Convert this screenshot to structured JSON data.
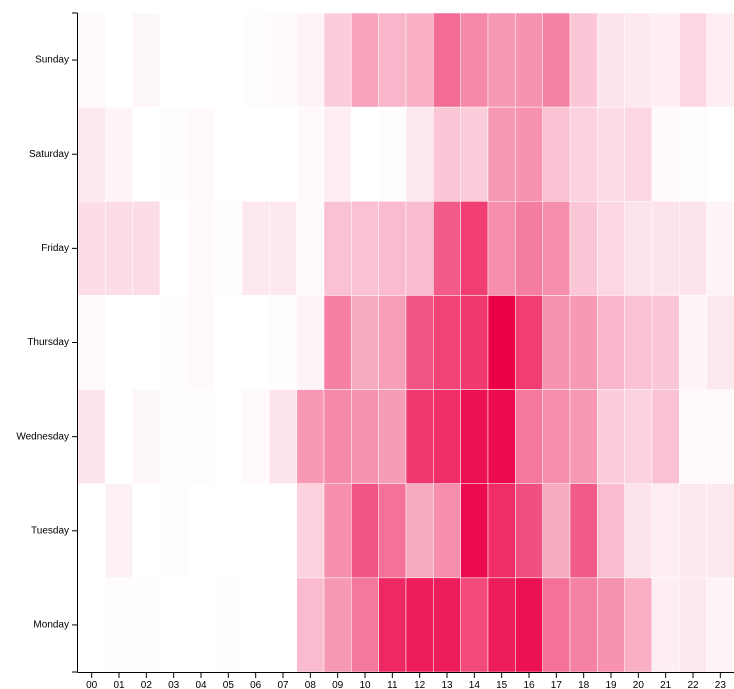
{
  "chart_data": {
    "type": "heatmap",
    "x_categories": [
      "00",
      "01",
      "02",
      "03",
      "04",
      "05",
      "06",
      "07",
      "08",
      "09",
      "10",
      "11",
      "12",
      "13",
      "14",
      "15",
      "16",
      "17",
      "18",
      "19",
      "20",
      "21",
      "22",
      "23"
    ],
    "y_categories": [
      "Sunday",
      "Saturday",
      "Friday",
      "Thursday",
      "Wednesday",
      "Tuesday",
      "Monday"
    ],
    "color_low": "#ffffff",
    "color_high": "#eb0046",
    "values": [
      [
        2,
        0,
        3,
        0,
        0,
        0,
        1,
        2,
        4,
        18,
        32,
        26,
        28,
        52,
        42,
        36,
        38,
        44,
        20,
        10,
        8,
        6,
        14,
        6
      ],
      [
        8,
        4,
        0,
        1,
        2,
        0,
        0,
        0,
        2,
        6,
        0,
        1,
        8,
        20,
        18,
        36,
        38,
        22,
        16,
        12,
        14,
        2,
        1,
        0
      ],
      [
        12,
        12,
        12,
        0,
        2,
        1,
        8,
        8,
        2,
        22,
        22,
        24,
        24,
        58,
        68,
        40,
        46,
        40,
        20,
        14,
        10,
        10,
        10,
        4
      ],
      [
        2,
        0,
        0,
        1,
        2,
        0,
        0,
        1,
        4,
        45,
        30,
        34,
        60,
        66,
        70,
        90,
        68,
        38,
        36,
        26,
        22,
        20,
        4,
        8
      ],
      [
        10,
        0,
        3,
        1,
        1,
        0,
        2,
        10,
        36,
        42,
        38,
        35,
        70,
        74,
        84,
        86,
        48,
        40,
        36,
        18,
        16,
        22,
        2,
        2
      ],
      [
        0,
        5,
        0,
        1,
        0,
        0,
        0,
        0,
        16,
        40,
        60,
        50,
        30,
        40,
        86,
        74,
        62,
        30,
        58,
        24,
        10,
        6,
        8,
        8
      ],
      [
        0,
        1,
        1,
        0,
        0,
        1,
        0,
        0,
        24,
        36,
        48,
        76,
        80,
        80,
        64,
        80,
        84,
        50,
        44,
        38,
        28,
        6,
        8,
        4
      ]
    ],
    "legend": "none",
    "grid": false
  }
}
